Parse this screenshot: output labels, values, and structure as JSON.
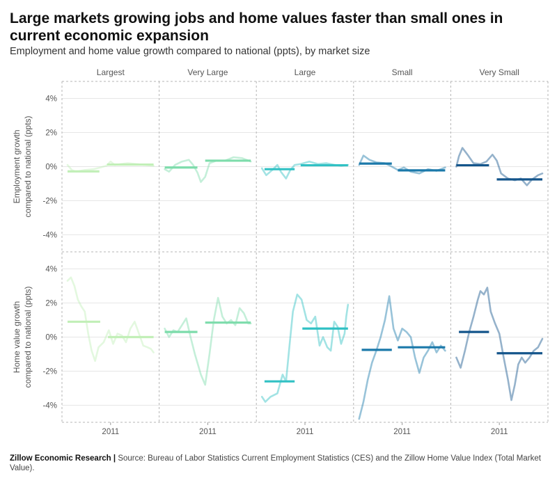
{
  "title": "Large markets growing jobs and home values faster than small ones in current economic expansion",
  "subtitle": "Employment and home value growth compared to national (ppts), by market size",
  "footer": {
    "org": "Zillow Economic Research |",
    "source": " Source: Bureau of Labor Statistics Current Employment Statistics (CES) and the Zillow Home Value Index (Total Market Value)."
  },
  "chart_data": {
    "type": "line",
    "facets": [
      "Largest",
      "Very Large",
      "Large",
      "Small",
      "Very Small"
    ],
    "rows": [
      {
        "key": "emp",
        "ylabel_lines": [
          "Employment growth",
          "compared to national (ppts)"
        ]
      },
      {
        "key": "hv",
        "ylabel_lines": [
          "Home value growth",
          "compared to national (ppts)"
        ]
      }
    ],
    "ylim": [
      -5,
      5
    ],
    "yticks": [
      4,
      2,
      0,
      -2,
      -4
    ],
    "ytick_labels": [
      "4%",
      "2%",
      "0%",
      "-2%",
      "-4%"
    ],
    "xlim": [
      0,
      1
    ],
    "xtick": {
      "x": 0.5,
      "label": "2011"
    },
    "grid": true,
    "colors": {
      "Largest": "#c2efb8",
      "Very Large": "#7ddcab",
      "Large": "#31c1c4",
      "Small": "#1b79aa",
      "Very Small": "#14558b"
    },
    "line_opacity": 0.45,
    "panels": {
      "emp": {
        "Largest": {
          "line": [
            [
              0,
              0.1
            ],
            [
              0.05,
              -0.2
            ],
            [
              0.1,
              -0.3
            ],
            [
              0.2,
              -0.2
            ],
            [
              0.3,
              -0.15
            ],
            [
              0.38,
              -0.05
            ],
            [
              0.45,
              0.05
            ],
            [
              0.5,
              0.3
            ],
            [
              0.55,
              0.1
            ],
            [
              0.62,
              0.15
            ],
            [
              0.7,
              0.2
            ],
            [
              0.8,
              0.15
            ],
            [
              0.9,
              0.1
            ],
            [
              1,
              0.05
            ]
          ],
          "means": [
            {
              "x0": 0,
              "x1": 0.37,
              "y": -0.28
            },
            {
              "x0": 0.46,
              "x1": 1,
              "y": 0.12
            }
          ]
        },
        "Very Large": {
          "line": [
            [
              0,
              -0.15
            ],
            [
              0.05,
              -0.3
            ],
            [
              0.12,
              0.1
            ],
            [
              0.2,
              0.3
            ],
            [
              0.28,
              0.4
            ],
            [
              0.33,
              0.1
            ],
            [
              0.38,
              -0.35
            ],
            [
              0.42,
              -0.9
            ],
            [
              0.47,
              -0.6
            ],
            [
              0.52,
              0.2
            ],
            [
              0.6,
              0.35
            ],
            [
              0.7,
              0.35
            ],
            [
              0.8,
              0.55
            ],
            [
              0.9,
              0.5
            ],
            [
              1,
              0.3
            ]
          ],
          "means": [
            {
              "x0": 0,
              "x1": 0.38,
              "y": -0.05
            },
            {
              "x0": 0.47,
              "x1": 1,
              "y": 0.35
            }
          ]
        },
        "Large": {
          "line": [
            [
              0,
              -0.1
            ],
            [
              0.05,
              -0.5
            ],
            [
              0.12,
              -0.2
            ],
            [
              0.18,
              0.1
            ],
            [
              0.22,
              -0.3
            ],
            [
              0.28,
              -0.7
            ],
            [
              0.33,
              -0.2
            ],
            [
              0.38,
              0.1
            ],
            [
              0.45,
              0.15
            ],
            [
              0.55,
              0.3
            ],
            [
              0.65,
              0.15
            ],
            [
              0.75,
              0.2
            ],
            [
              0.85,
              0.1
            ],
            [
              0.92,
              0.05
            ],
            [
              1,
              0.1
            ]
          ],
          "means": [
            {
              "x0": 0.03,
              "x1": 0.38,
              "y": -0.15
            },
            {
              "x0": 0.45,
              "x1": 1,
              "y": 0.08
            }
          ]
        },
        "Small": {
          "line": [
            [
              0,
              0.1
            ],
            [
              0.05,
              0.65
            ],
            [
              0.12,
              0.4
            ],
            [
              0.2,
              0.25
            ],
            [
              0.3,
              0.2
            ],
            [
              0.38,
              0.0
            ],
            [
              0.45,
              -0.2
            ],
            [
              0.52,
              -0.05
            ],
            [
              0.6,
              -0.3
            ],
            [
              0.7,
              -0.4
            ],
            [
              0.8,
              -0.15
            ],
            [
              0.9,
              -0.25
            ],
            [
              1,
              -0.05
            ]
          ],
          "means": [
            {
              "x0": 0,
              "x1": 0.38,
              "y": 0.18
            },
            {
              "x0": 0.45,
              "x1": 1,
              "y": -0.22
            }
          ]
        },
        "Very Small": {
          "line": [
            [
              0,
              0.0
            ],
            [
              0.03,
              0.6
            ],
            [
              0.07,
              1.1
            ],
            [
              0.13,
              0.7
            ],
            [
              0.2,
              0.2
            ],
            [
              0.28,
              0.15
            ],
            [
              0.35,
              0.3
            ],
            [
              0.42,
              0.7
            ],
            [
              0.47,
              0.35
            ],
            [
              0.52,
              -0.4
            ],
            [
              0.6,
              -0.7
            ],
            [
              0.68,
              -0.8
            ],
            [
              0.75,
              -0.7
            ],
            [
              0.82,
              -1.1
            ],
            [
              0.88,
              -0.75
            ],
            [
              0.95,
              -0.5
            ],
            [
              1,
              -0.4
            ]
          ],
          "means": [
            {
              "x0": 0,
              "x1": 0.38,
              "y": 0.08
            },
            {
              "x0": 0.47,
              "x1": 1,
              "y": -0.75
            }
          ]
        }
      },
      "hv": {
        "Largest": {
          "line": [
            [
              0,
              3.3
            ],
            [
              0.04,
              3.5
            ],
            [
              0.08,
              3.0
            ],
            [
              0.12,
              2.2
            ],
            [
              0.16,
              1.8
            ],
            [
              0.2,
              1.5
            ],
            [
              0.24,
              0.2
            ],
            [
              0.28,
              -0.8
            ],
            [
              0.32,
              -1.4
            ],
            [
              0.36,
              -0.6
            ],
            [
              0.42,
              -0.3
            ],
            [
              0.48,
              0.4
            ],
            [
              0.53,
              -0.4
            ],
            [
              0.58,
              0.2
            ],
            [
              0.63,
              0.1
            ],
            [
              0.68,
              -0.3
            ],
            [
              0.73,
              0.5
            ],
            [
              0.78,
              0.9
            ],
            [
              0.83,
              0.2
            ],
            [
              0.88,
              -0.5
            ],
            [
              0.93,
              -0.6
            ],
            [
              0.97,
              -0.7
            ],
            [
              1,
              -0.9
            ]
          ],
          "means": [
            {
              "x0": 0,
              "x1": 0.38,
              "y": 0.9
            },
            {
              "x0": 0.47,
              "x1": 1,
              "y": 0.0
            }
          ]
        },
        "Very Large": {
          "line": [
            [
              0,
              0.5
            ],
            [
              0.05,
              0.0
            ],
            [
              0.1,
              0.4
            ],
            [
              0.15,
              0.3
            ],
            [
              0.2,
              0.7
            ],
            [
              0.25,
              1.1
            ],
            [
              0.3,
              0.0
            ],
            [
              0.35,
              -1.0
            ],
            [
              0.42,
              -2.2
            ],
            [
              0.47,
              -2.8
            ],
            [
              0.52,
              -1.0
            ],
            [
              0.57,
              1.0
            ],
            [
              0.62,
              2.3
            ],
            [
              0.67,
              1.2
            ],
            [
              0.72,
              0.8
            ],
            [
              0.77,
              1.0
            ],
            [
              0.82,
              0.7
            ],
            [
              0.87,
              1.7
            ],
            [
              0.92,
              1.4
            ],
            [
              0.97,
              0.8
            ],
            [
              1,
              0.8
            ]
          ],
          "means": [
            {
              "x0": 0,
              "x1": 0.38,
              "y": 0.3
            },
            {
              "x0": 0.47,
              "x1": 1,
              "y": 0.85
            }
          ]
        },
        "Large": {
          "line": [
            [
              0,
              -3.5
            ],
            [
              0.04,
              -3.8
            ],
            [
              0.1,
              -3.5
            ],
            [
              0.18,
              -3.3
            ],
            [
              0.24,
              -2.2
            ],
            [
              0.28,
              -2.6
            ],
            [
              0.32,
              -0.5
            ],
            [
              0.36,
              1.5
            ],
            [
              0.41,
              2.5
            ],
            [
              0.46,
              2.2
            ],
            [
              0.52,
              1.0
            ],
            [
              0.57,
              0.8
            ],
            [
              0.62,
              1.2
            ],
            [
              0.67,
              -0.5
            ],
            [
              0.71,
              0.0
            ],
            [
              0.76,
              -0.6
            ],
            [
              0.8,
              -0.8
            ],
            [
              0.84,
              0.9
            ],
            [
              0.88,
              0.6
            ],
            [
              0.92,
              -0.4
            ],
            [
              0.96,
              0.2
            ],
            [
              0.98,
              1.2
            ],
            [
              1,
              1.9
            ]
          ],
          "means": [
            {
              "x0": 0.03,
              "x1": 0.38,
              "y": -2.6
            },
            {
              "x0": 0.47,
              "x1": 1,
              "y": 0.5
            }
          ]
        },
        "Small": {
          "line": [
            [
              0,
              -4.8
            ],
            [
              0.05,
              -3.8
            ],
            [
              0.1,
              -2.5
            ],
            [
              0.15,
              -1.5
            ],
            [
              0.2,
              -0.8
            ],
            [
              0.25,
              0.0
            ],
            [
              0.3,
              1.0
            ],
            [
              0.35,
              2.4
            ],
            [
              0.4,
              0.5
            ],
            [
              0.45,
              -0.2
            ],
            [
              0.5,
              0.5
            ],
            [
              0.55,
              0.3
            ],
            [
              0.6,
              0.0
            ],
            [
              0.65,
              -1.2
            ],
            [
              0.7,
              -2.1
            ],
            [
              0.75,
              -1.2
            ],
            [
              0.8,
              -0.8
            ],
            [
              0.85,
              -0.3
            ],
            [
              0.9,
              -0.9
            ],
            [
              0.95,
              -0.5
            ],
            [
              1,
              -0.8
            ]
          ],
          "means": [
            {
              "x0": 0.03,
              "x1": 0.38,
              "y": -0.75
            },
            {
              "x0": 0.45,
              "x1": 1,
              "y": -0.6
            }
          ]
        },
        "Very Small": {
          "line": [
            [
              0,
              -1.2
            ],
            [
              0.05,
              -1.8
            ],
            [
              0.1,
              -0.8
            ],
            [
              0.15,
              0.3
            ],
            [
              0.2,
              1.2
            ],
            [
              0.25,
              2.2
            ],
            [
              0.28,
              2.7
            ],
            [
              0.32,
              2.5
            ],
            [
              0.36,
              2.9
            ],
            [
              0.4,
              1.5
            ],
            [
              0.45,
              0.8
            ],
            [
              0.5,
              0.2
            ],
            [
              0.55,
              -1.2
            ],
            [
              0.6,
              -2.5
            ],
            [
              0.64,
              -3.7
            ],
            [
              0.68,
              -2.8
            ],
            [
              0.72,
              -1.6
            ],
            [
              0.76,
              -1.2
            ],
            [
              0.8,
              -1.5
            ],
            [
              0.85,
              -1.2
            ],
            [
              0.9,
              -0.8
            ],
            [
              0.95,
              -0.6
            ],
            [
              1,
              -0.1
            ]
          ],
          "means": [
            {
              "x0": 0.03,
              "x1": 0.38,
              "y": 0.3
            },
            {
              "x0": 0.47,
              "x1": 1,
              "y": -0.95
            }
          ]
        }
      }
    }
  }
}
